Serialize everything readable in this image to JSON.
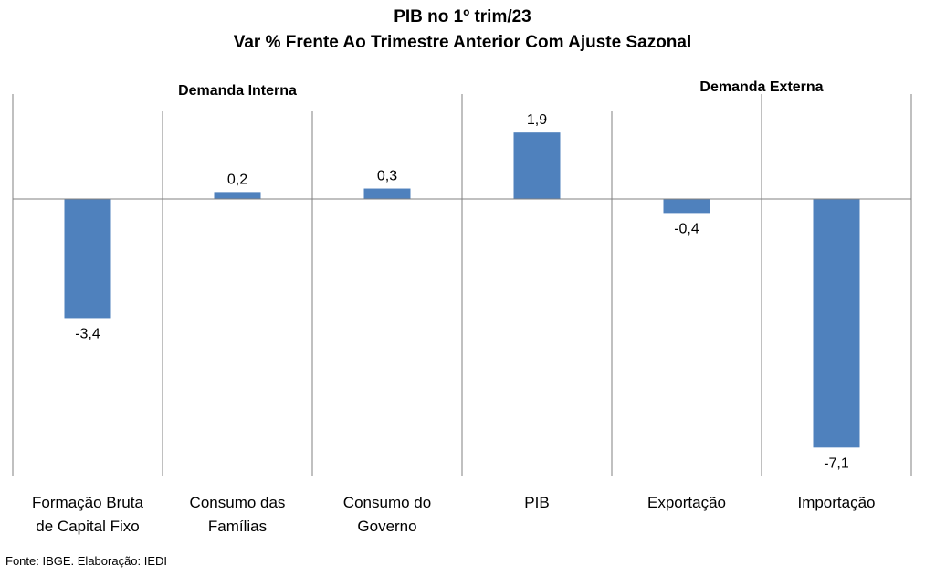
{
  "chart_data": {
    "type": "bar",
    "title": "PIB no 1º trim/23",
    "subtitle": "Var % Frente Ao Trimestre Anterior Com Ajuste Sazonal",
    "categories": [
      [
        "Formação Bruta",
        "de Capital Fixo"
      ],
      [
        "Consumo das",
        "Famílias"
      ],
      [
        "Consumo do",
        "Governo"
      ],
      [
        "PIB"
      ],
      [
        "Exportação"
      ],
      [
        "Importação"
      ]
    ],
    "values": [
      -3.4,
      0.2,
      0.3,
      1.9,
      -0.4,
      -7.1
    ],
    "value_labels": [
      "-3,4",
      "0,2",
      "0,3",
      "1,9",
      "-0,4",
      "-7,1"
    ],
    "group_labels": [
      "Demanda  Interna",
      "Demanda  Externa"
    ],
    "ylim": [
      -7.9,
      3.0
    ],
    "bar_color": "#4f81bd",
    "grid": false
  },
  "footer": {
    "source": "Fonte: IBGE. Elaboração: IEDI"
  }
}
